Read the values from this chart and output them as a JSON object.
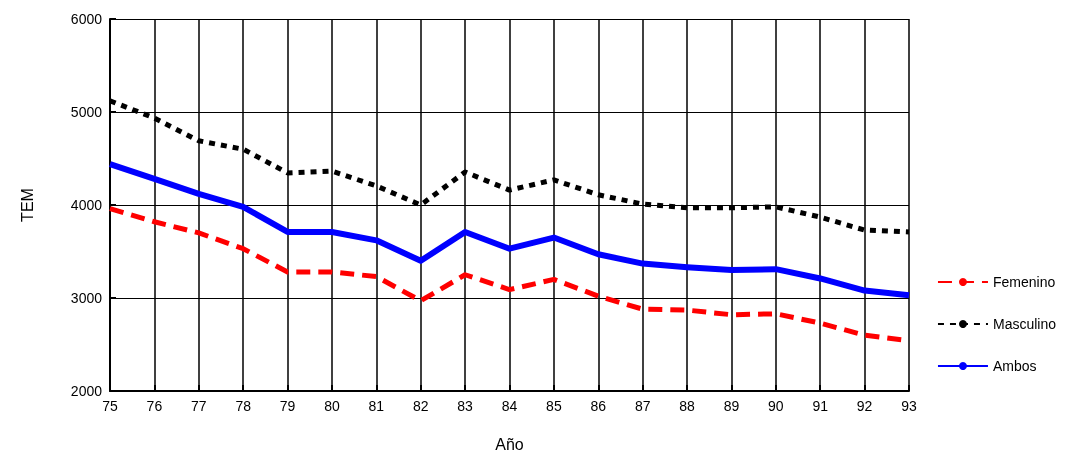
{
  "chart_data": {
    "type": "line",
    "xlabel": "Año",
    "ylabel": "TEM",
    "categories": [
      "75",
      "76",
      "77",
      "78",
      "79",
      "80",
      "81",
      "82",
      "83",
      "84",
      "85",
      "86",
      "87",
      "88",
      "89",
      "90",
      "91",
      "92",
      "93"
    ],
    "series": [
      {
        "name": "Femenino",
        "color": "#ff0000",
        "line_style": "dashed",
        "values": [
          3960,
          3820,
          3700,
          3530,
          3280,
          3280,
          3230,
          2970,
          3250,
          3090,
          3200,
          3020,
          2880,
          2870,
          2820,
          2830,
          2730,
          2600,
          2540
        ]
      },
      {
        "name": "Masculino",
        "color": "#000000",
        "line_style": "dotted",
        "values": [
          5120,
          4935,
          4690,
          4600,
          4345,
          4365,
          4205,
          4000,
          4355,
          4160,
          4270,
          4110,
          4010,
          3970,
          3970,
          3980,
          3870,
          3730,
          3710
        ]
      },
      {
        "name": "Ambos",
        "color": "#0000ff",
        "line_style": "solid",
        "values": [
          4440,
          4280,
          4120,
          3980,
          3710,
          3710,
          3620,
          3400,
          3710,
          3530,
          3650,
          3470,
          3370,
          3330,
          3300,
          3310,
          3210,
          3080,
          3030
        ]
      }
    ],
    "ylim": [
      2000,
      6000
    ],
    "yticks": [
      2000,
      3000,
      4000,
      5000,
      6000
    ],
    "grid": true,
    "legend": "right",
    "marker": "none"
  }
}
